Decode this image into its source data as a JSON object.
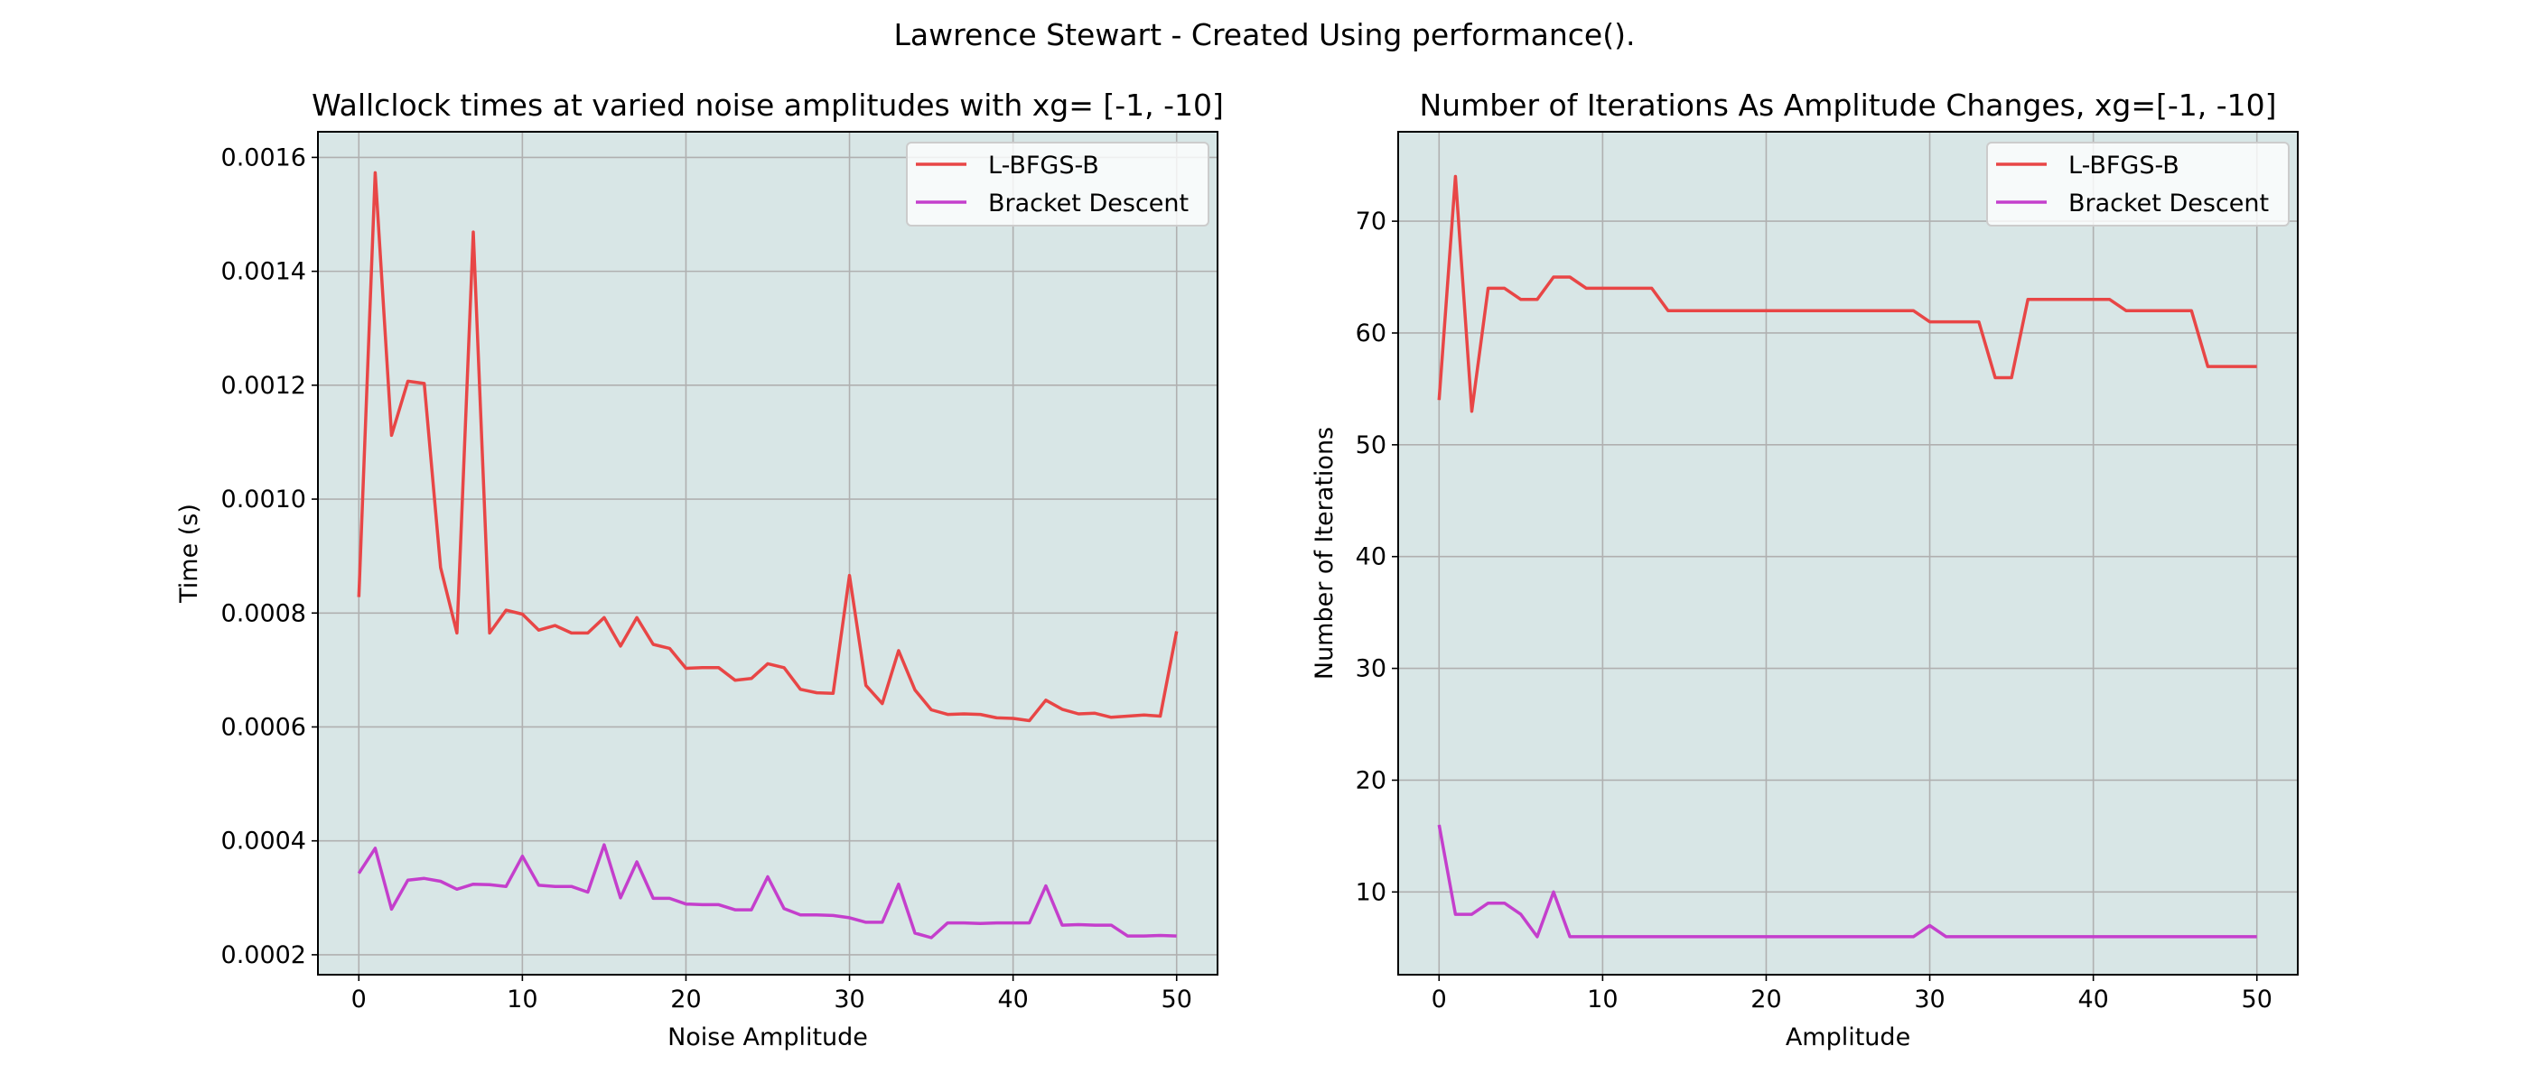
{
  "suptitle": "Lawrence Stewart - Created Using performance().",
  "colors": {
    "plot_background": "#d8e6e6",
    "grid": "#b0b0b0",
    "lbfgsb": "#e84646",
    "bracket": "#c43fcc"
  },
  "chart_data": [
    {
      "type": "line",
      "title": "Wallclock times at varied noise amplitudes with xg= [-1, -10]",
      "xlabel": "Noise Amplitude",
      "ylabel": "Time (s)",
      "xlim": [
        -2.5,
        52.5
      ],
      "ylim": [
        0.000165,
        0.001645
      ],
      "grid": true,
      "legend_position": "upper right",
      "xticks": [
        0,
        10,
        20,
        30,
        40,
        50
      ],
      "xtick_labels": [
        "0",
        "10",
        "20",
        "30",
        "40",
        "50"
      ],
      "yticks": [
        0.0002,
        0.0004,
        0.0006,
        0.0008,
        0.001,
        0.0012,
        0.0014,
        0.0016
      ],
      "ytick_labels": [
        "0.0002",
        "0.0004",
        "0.0006",
        "0.0008",
        "0.0010",
        "0.0012",
        "0.0014",
        "0.0016"
      ],
      "x": [
        0,
        1,
        2,
        3,
        4,
        5,
        6,
        7,
        8,
        9,
        10,
        11,
        12,
        13,
        14,
        15,
        16,
        17,
        18,
        19,
        20,
        21,
        22,
        23,
        24,
        25,
        26,
        27,
        28,
        29,
        30,
        31,
        32,
        33,
        34,
        35,
        36,
        37,
        38,
        39,
        40,
        41,
        42,
        43,
        44,
        45,
        46,
        47,
        48,
        49,
        50
      ],
      "series": [
        {
          "name": "L-BFGS-B",
          "color_key": "lbfgsb",
          "values": [
            0.000828,
            0.001573,
            0.001112,
            0.001207,
            0.001203,
            0.00088,
            0.000765,
            0.001469,
            0.000765,
            0.000805,
            0.000798,
            0.00077,
            0.000778,
            0.000765,
            0.000765,
            0.000792,
            0.000742,
            0.000792,
            0.000745,
            0.000738,
            0.000703,
            0.000704,
            0.000704,
            0.000682,
            0.000685,
            0.000711,
            0.000704,
            0.000666,
            0.00066,
            0.000659,
            0.000866,
            0.000673,
            0.000641,
            0.000734,
            0.000665,
            0.00063,
            0.000622,
            0.000623,
            0.000622,
            0.000616,
            0.000615,
            0.000611,
            0.000647,
            0.000631,
            0.000623,
            0.000624,
            0.000617,
            0.000619,
            0.000621,
            0.000619,
            0.000768
          ]
        },
        {
          "name": "Bracket Descent",
          "color_key": "bracket",
          "values": [
            0.000343,
            0.000387,
            0.00028,
            0.000331,
            0.000334,
            0.000329,
            0.000315,
            0.000324,
            0.000323,
            0.00032,
            0.000373,
            0.000322,
            0.00032,
            0.00032,
            0.00031,
            0.000393,
            0.0003,
            0.000363,
            0.000299,
            0.000299,
            0.000289,
            0.000288,
            0.000288,
            0.000279,
            0.000279,
            0.000337,
            0.000281,
            0.00027,
            0.00027,
            0.000269,
            0.000265,
            0.000257,
            0.000257,
            0.000324,
            0.000238,
            0.00023,
            0.000256,
            0.000256,
            0.000255,
            0.000256,
            0.000256,
            0.000256,
            0.000321,
            0.000252,
            0.000253,
            0.000252,
            0.000252,
            0.000233,
            0.000233,
            0.000234,
            0.000233
          ]
        }
      ]
    },
    {
      "type": "line",
      "title": "Number of Iterations As Amplitude Changes, xg=[-1, -10]",
      "xlabel": "Amplitude",
      "ylabel": "Number of Iterations",
      "xlim": [
        -2.5,
        52.5
      ],
      "ylim": [
        2.6,
        78.0
      ],
      "grid": true,
      "legend_position": "upper right",
      "xticks": [
        0,
        10,
        20,
        30,
        40,
        50
      ],
      "xtick_labels": [
        "0",
        "10",
        "20",
        "30",
        "40",
        "50"
      ],
      "yticks": [
        10,
        20,
        30,
        40,
        50,
        60,
        70
      ],
      "ytick_labels": [
        "10",
        "20",
        "30",
        "40",
        "50",
        "60",
        "70"
      ],
      "x": [
        0,
        1,
        2,
        3,
        4,
        5,
        6,
        7,
        8,
        9,
        10,
        11,
        12,
        13,
        14,
        15,
        16,
        17,
        18,
        19,
        20,
        21,
        22,
        23,
        24,
        25,
        26,
        27,
        28,
        29,
        30,
        31,
        32,
        33,
        34,
        35,
        36,
        37,
        38,
        39,
        40,
        41,
        42,
        43,
        44,
        45,
        46,
        47,
        48,
        49,
        50
      ],
      "series": [
        {
          "name": "L-BFGS-B",
          "color_key": "lbfgsb",
          "values": [
            54,
            74,
            53,
            64,
            64,
            63,
            63,
            65,
            65,
            64,
            64,
            64,
            64,
            64,
            62,
            62,
            62,
            62,
            62,
            62,
            62,
            62,
            62,
            62,
            62,
            62,
            62,
            62,
            62,
            62,
            61,
            61,
            61,
            61,
            56,
            56,
            63,
            63,
            63,
            63,
            63,
            63,
            62,
            62,
            62,
            62,
            62,
            57,
            57,
            57,
            57
          ]
        },
        {
          "name": "Bracket Descent",
          "color_key": "bracket",
          "values": [
            16,
            8,
            8,
            9,
            9,
            8,
            6,
            10,
            6,
            6,
            6,
            6,
            6,
            6,
            6,
            6,
            6,
            6,
            6,
            6,
            6,
            6,
            6,
            6,
            6,
            6,
            6,
            6,
            6,
            6,
            7,
            6,
            6,
            6,
            6,
            6,
            6,
            6,
            6,
            6,
            6,
            6,
            6,
            6,
            6,
            6,
            6,
            6,
            6,
            6,
            6
          ]
        }
      ]
    }
  ]
}
